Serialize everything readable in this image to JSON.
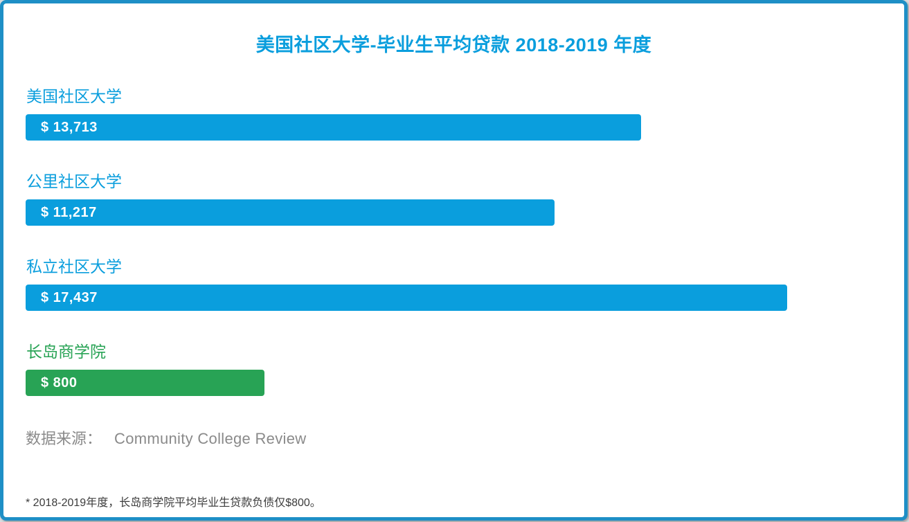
{
  "title": "美国社区大学-毕业生平均贷款 2018-2019 年度",
  "chart_data": {
    "type": "bar",
    "orientation": "horizontal",
    "title": "美国社区大学-毕业生平均贷款 2018-2019 年度",
    "categories": [
      "美国社区大学",
      "公里社区大学",
      "私立社区大学",
      "长岛商学院"
    ],
    "values": [
      13713,
      11217,
      17437,
      800
    ],
    "value_labels": [
      "$ 13,713",
      "$ 11,217",
      "$ 17,437",
      "$ 800"
    ],
    "bars": [
      {
        "label": "美国社区大学",
        "value": 13713,
        "value_label": "$ 13,713",
        "color": "#0a9edd",
        "width_pct": 71.9
      },
      {
        "label": "公里社区大学",
        "value": 11217,
        "value_label": "$ 11,217",
        "color": "#0a9edd",
        "width_pct": 61.8
      },
      {
        "label": "私立社区大学",
        "value": 17437,
        "value_label": "$ 17,437",
        "color": "#0a9edd",
        "width_pct": 88.9
      },
      {
        "label": "长岛商学院",
        "value": 800,
        "value_label": "$ 800",
        "color": "#28a355",
        "width_pct": 27.9
      }
    ],
    "legend": null,
    "grid": false,
    "axes_shown": false
  },
  "source": {
    "label": "数据来源：",
    "value": "Community College Review"
  },
  "footnote": "* 2018-2019年度，长岛商学院平均毕业生贷款负债仅$800。",
  "colors": {
    "accent_blue": "#0a9edd",
    "accent_green": "#28a355",
    "border_blue": "#1e8fc6",
    "source_gray": "#8a8a8a",
    "footnote_dark": "#3b3b3b",
    "bar_text_white": "#ffffff",
    "card_background": "#ffffff"
  }
}
